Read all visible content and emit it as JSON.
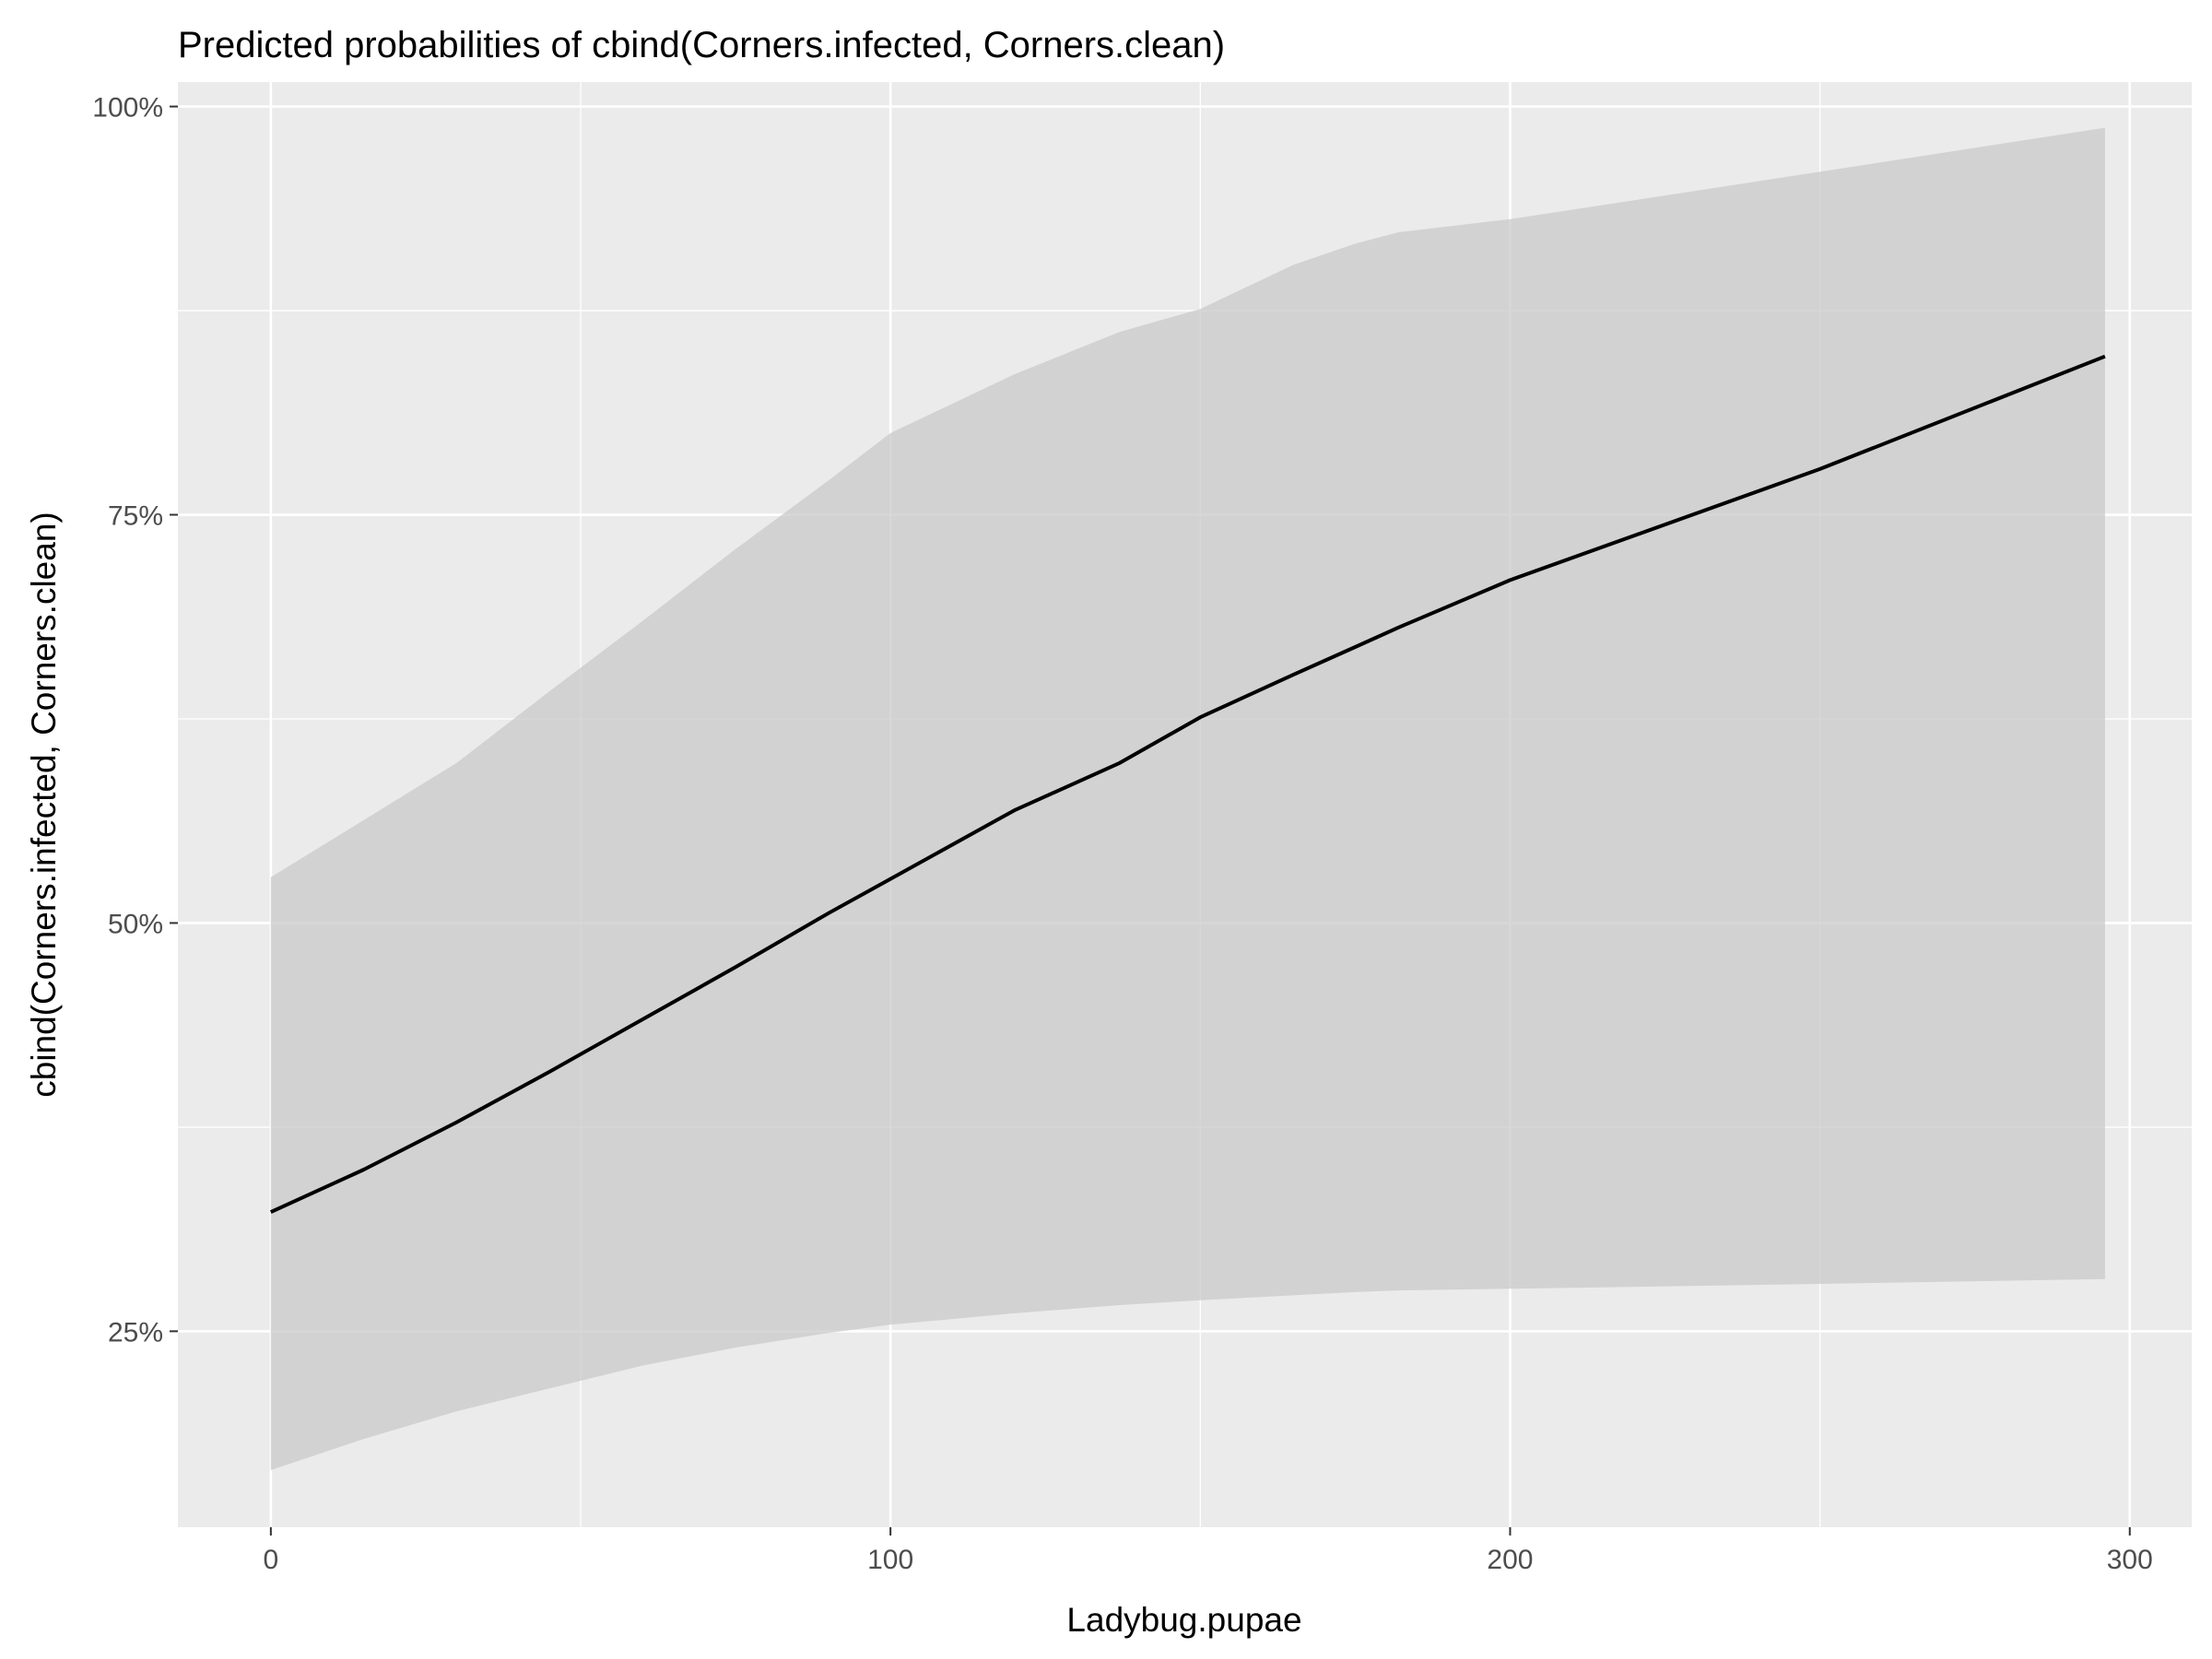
{
  "chart_data": {
    "type": "line",
    "title": "Predicted probabilities of cbind(Corners.infected, Corners.clean)",
    "xlabel": "Ladybug.pupae",
    "ylabel": "cbind(Corners.infected, Corners.clean)",
    "xlim": [
      -15,
      310
    ],
    "ylim": [
      0.13,
      1.015
    ],
    "x_ticks": [
      0,
      100,
      200,
      300
    ],
    "x_tick_labels": [
      "0",
      "100",
      "200",
      "300"
    ],
    "x_minor_ticks": [
      50,
      150,
      250
    ],
    "y_ticks": [
      0.25,
      0.5,
      0.75,
      1.0
    ],
    "y_tick_labels": [
      "25%",
      "50%",
      "75%",
      "100%"
    ],
    "y_minor_ticks": [
      0.375,
      0.625,
      0.875
    ],
    "grid": true,
    "legend": "none",
    "colors": {
      "panel_background": "#ebebeb",
      "grid": "#ffffff",
      "ribbon": "#c8c8c8",
      "line": "#000000"
    },
    "series": [
      {
        "x": [
          0,
          15,
          30,
          45,
          60,
          75,
          90,
          100,
          120,
          137,
          150,
          165,
          175,
          182,
          200,
          250,
          296
        ],
        "values": [
          0.323,
          0.349,
          0.378,
          0.409,
          0.441,
          0.473,
          0.506,
          0.527,
          0.569,
          0.598,
          0.626,
          0.652,
          0.669,
          0.681,
          0.71,
          0.778,
          0.847
        ],
        "lower": [
          0.165,
          0.184,
          0.201,
          0.215,
          0.229,
          0.24,
          0.249,
          0.254,
          0.261,
          0.266,
          0.269,
          0.272,
          0.274,
          0.275,
          0.276,
          0.279,
          0.282
        ],
        "upper": [
          0.528,
          0.563,
          0.598,
          0.642,
          0.685,
          0.729,
          0.771,
          0.8,
          0.836,
          0.862,
          0.876,
          0.903,
          0.916,
          0.923,
          0.931,
          0.96,
          0.987
        ]
      }
    ]
  }
}
